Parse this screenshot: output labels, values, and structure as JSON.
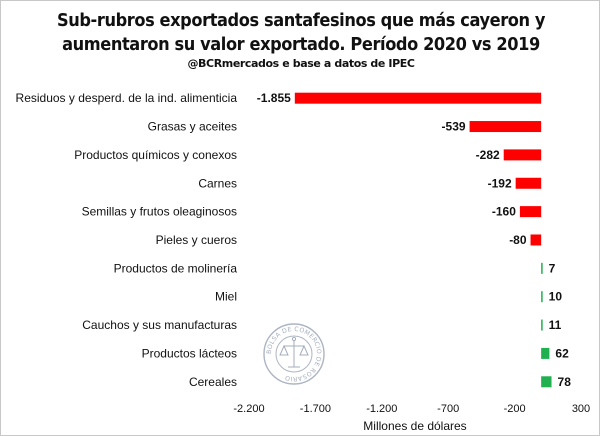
{
  "title_line1": "Sub-rubros exportados santafesinos que más cayeron y",
  "title_line2": "aumentaron su valor exportado. Período 2020 vs 2019",
  "subtitle": "@BCRmercados e base a datos de IPEC",
  "seal_text": "BOLSA DE COMERCIO DE ROSARIO",
  "chart_data": {
    "type": "bar",
    "orientation": "horizontal",
    "categories": [
      "Residuos y desperd. de la ind. alimenticia",
      "Grasas y aceites",
      "Productos químicos y conexos",
      "Carnes",
      "Semillas y frutos oleaginosos",
      "Pieles y cueros",
      "Productos de molinería",
      "Miel",
      "Cauchos y sus manufacturas",
      "Productos lácteos",
      "Cereales"
    ],
    "values": [
      -1855,
      -539,
      -282,
      -192,
      -160,
      -80,
      7,
      10,
      11,
      62,
      78
    ],
    "value_labels": [
      "-1.855",
      "-539",
      "-282",
      "-192",
      "-160",
      "-80",
      "7",
      "10",
      "11",
      "62",
      "78"
    ],
    "xlim": [
      -2200,
      300
    ],
    "xticks": [
      -2200,
      -1700,
      -1200,
      -700,
      -200,
      300
    ],
    "xtick_labels": [
      "-2.200",
      "-1.700",
      "-1.200",
      "-700",
      "-200",
      "300"
    ],
    "xlabel": "Millones de dólares",
    "ylabel": "",
    "negative_color": "#ff0000",
    "positive_color": "#20b050",
    "grid": false,
    "legend": "none"
  }
}
